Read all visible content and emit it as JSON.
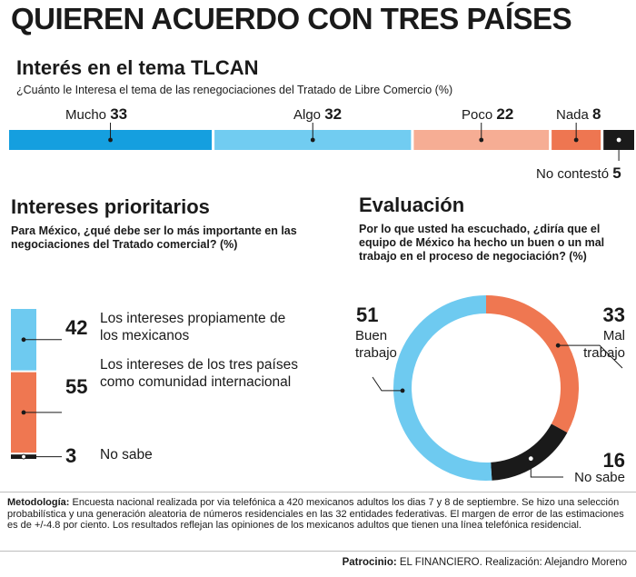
{
  "header": {
    "title": "QUIEREN ACUERDO CON TRES PAÍSES"
  },
  "colors": {
    "mucho": "#159fdf",
    "algo": "#71ccf1",
    "poco": "#f6ad94",
    "nada": "#ee7651",
    "no_contesto": "#1a1a1a",
    "orange": "#ef7751",
    "blue": "#6ecaf0",
    "black": "#1a1a1a"
  },
  "section1": {
    "title": "Interés en el tema TLCAN",
    "question": "¿Cuánto le Interesa el tema de las renegociaciones del Tratado de Libre Comercio (%)"
  },
  "section2": {
    "title": "Intereses prioritarios",
    "question": "Para México, ¿qué debe ser lo más importante en las negociaciones del Tratado comercial? (%)"
  },
  "section3": {
    "title": "Evaluación",
    "question": "Por lo que usted ha escuchado, ¿diría que el equipo de México ha hecho un buen o un mal trabajo en el proceso de negociación? (%)"
  },
  "chart_data": [
    {
      "type": "bar",
      "orientation": "horizontal-stacked",
      "title": "Interés en el tema TLCAN",
      "categories": [
        "Mucho",
        "Algo",
        "Poco",
        "Nada",
        "No contestó"
      ],
      "values": [
        33,
        32,
        22,
        8,
        5
      ],
      "colors": [
        "#159fdf",
        "#71ccf1",
        "#f6ad94",
        "#ee7651",
        "#1a1a1a"
      ]
    },
    {
      "type": "bar",
      "orientation": "vertical-stacked",
      "title": "Intereses prioritarios",
      "categories": [
        "Los intereses propiamente de los mexicanos",
        "Los intereses de los tres países como comunidad internacional",
        "No sabe"
      ],
      "values": [
        42,
        55,
        3
      ],
      "colors": [
        "#6ecaf0",
        "#ef7751",
        "#1a1a1a"
      ]
    },
    {
      "type": "pie",
      "style": "donut",
      "title": "Evaluación",
      "categories": [
        "Buen trabajo",
        "Mal trabajo",
        "No sabe"
      ],
      "values": [
        51,
        33,
        16
      ],
      "colors": [
        "#6ecaf0",
        "#ef7751",
        "#1a1a1a"
      ]
    }
  ],
  "bar_labels": {
    "mucho": {
      "text": "Mucho",
      "value": "33"
    },
    "algo": {
      "text": "Algo",
      "value": "32"
    },
    "poco": {
      "text": "Poco",
      "value": "22"
    },
    "nada": {
      "text": "Nada",
      "value": "8"
    },
    "no_contesto": {
      "text": "No contestó",
      "value": "5"
    }
  },
  "priority_labels": {
    "mexicanos": {
      "text": "Los intereses propiamente de los mexicanos",
      "value": "42"
    },
    "tres_paises": {
      "text": "Los intereses de los tres países como comunidad internacional",
      "value": "55"
    },
    "no_sabe": {
      "text": "No sabe",
      "value": "3"
    }
  },
  "ring_labels": {
    "buen": {
      "value": "51",
      "line1": "Buen",
      "line2": "trabajo"
    },
    "mal": {
      "value": "33",
      "line1": "Mal",
      "line2": "trabajo"
    },
    "no_sabe": {
      "value": "16",
      "text": "No sabe"
    }
  },
  "footer": {
    "method_label": "Metodología:",
    "method_text": "Encuesta nacional realizada por via telefónica a 420 mexicanos adultos los dias 7 y 8 de septiembre. Se hizo una selección probabilística y una generación aleatoria de números residenciales en las 32 entidades federativas. El margen de error de las estimaciones es de +/-4.8 por ciento. Los resultados reflejan las opiniones de los mexicanos adultos que tienen una línea telefónica residencial.",
    "credit_label": "Patrocinio:",
    "credit_text": "EL FINANCIERO. Realización: Alejandro Moreno"
  }
}
